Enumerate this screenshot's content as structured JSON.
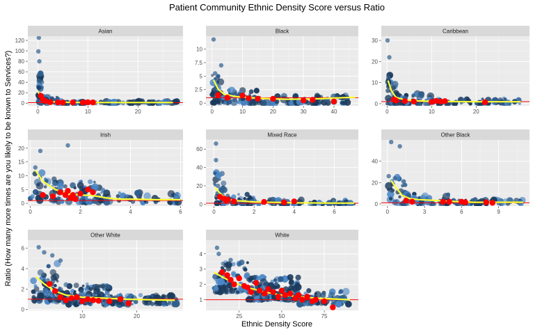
{
  "chart_data": {
    "type": "scatter",
    "title": "Patient Community Ethnic Density Score versus Ratio",
    "xlabel": "Ethnic Density Score",
    "ylabel": "Ratio (How many more times are you likely to be known to Services?)",
    "colors": {
      "points_dark": "#1b3a5c",
      "points_mid": "#2f5f8f",
      "points_light": "#4a86c5",
      "highlight_points": "#ff0000",
      "smooth_line": "#ffff33",
      "reference_line": "#ff0000"
    },
    "reference_line": {
      "y": 1
    },
    "panels": [
      {
        "name": "Asian",
        "xlim": [
          -2,
          29
        ],
        "ylim": [
          -5,
          128
        ],
        "xticks": [
          0,
          10,
          20
        ],
        "yticks": [
          0,
          20,
          40,
          60,
          80,
          100,
          120
        ],
        "smooth": [
          [
            0,
            22
          ],
          [
            0.5,
            14
          ],
          [
            1,
            8
          ],
          [
            2,
            4
          ],
          [
            3,
            2.5
          ],
          [
            5,
            1.8
          ],
          [
            8,
            1.4
          ],
          [
            12,
            1.3
          ],
          [
            18,
            1.2
          ],
          [
            27,
            1.2
          ]
        ],
        "highlight": [
          [
            0.6,
            14
          ],
          [
            1,
            7
          ],
          [
            1.5,
            4
          ],
          [
            2.5,
            2
          ],
          [
            4,
            1.5
          ],
          [
            5,
            1.2
          ],
          [
            7,
            1.5
          ],
          [
            9,
            1.2
          ],
          [
            10,
            1.8
          ],
          [
            11,
            1.5
          ]
        ],
        "bands": [
          [
            0,
            1,
            0,
            60,
            30
          ],
          [
            1,
            4,
            0,
            12,
            30
          ],
          [
            4,
            28,
            0,
            4,
            80
          ]
        ],
        "outliers": [
          [
            0.2,
            125
          ],
          [
            0.1,
            99
          ],
          [
            0.3,
            80
          ],
          [
            0.5,
            55
          ],
          [
            0.2,
            43
          ],
          [
            0.8,
            40
          ]
        ]
      },
      {
        "name": "Black",
        "xlim": [
          -2,
          48
        ],
        "ylim": [
          -0.5,
          12.4
        ],
        "xticks": [
          0,
          10,
          20,
          30,
          40
        ],
        "yticks": [
          0,
          2.5,
          5,
          7.5,
          10
        ],
        "smooth": [
          [
            0.5,
            4.3
          ],
          [
            2,
            2.6
          ],
          [
            4,
            1.6
          ],
          [
            8,
            1.2
          ],
          [
            15,
            0.9
          ],
          [
            25,
            0.7
          ],
          [
            35,
            0.8
          ],
          [
            47,
            1.1
          ]
        ],
        "highlight": [
          [
            2,
            1.5
          ],
          [
            5,
            1.0
          ],
          [
            10,
            1.4
          ],
          [
            12,
            0.9
          ],
          [
            15,
            0.8
          ],
          [
            20,
            0.8
          ],
          [
            30,
            0.5
          ],
          [
            33,
            0.6
          ],
          [
            40,
            0.3
          ]
        ],
        "bands": [
          [
            0,
            3,
            0,
            6,
            30
          ],
          [
            3,
            15,
            0,
            2.5,
            50
          ],
          [
            15,
            45,
            0,
            1.5,
            60
          ]
        ],
        "outliers": [
          [
            0.5,
            11.8
          ],
          [
            3,
            7
          ],
          [
            1,
            5.5
          ],
          [
            2,
            5.0
          ]
        ]
      },
      {
        "name": "Caribbean",
        "xlim": [
          -1.3,
          32
        ],
        "ylim": [
          -1,
          32
        ],
        "xticks": [
          0,
          10,
          20
        ],
        "yticks": [
          0,
          10,
          20,
          30
        ],
        "smooth": [
          [
            0.2,
            11
          ],
          [
            1,
            6
          ],
          [
            2,
            3
          ],
          [
            4,
            1.8
          ],
          [
            7,
            1.3
          ],
          [
            12,
            1
          ],
          [
            20,
            0.9
          ],
          [
            30,
            0.9
          ]
        ],
        "highlight": [
          [
            1.5,
            2
          ],
          [
            2,
            1.5
          ],
          [
            4,
            1.2
          ],
          [
            6,
            1
          ],
          [
            10,
            0.8
          ],
          [
            11,
            1.3
          ],
          [
            12,
            1
          ],
          [
            13,
            1.2
          ],
          [
            22,
            0.7
          ]
        ],
        "bands": [
          [
            0,
            2,
            0,
            14,
            30
          ],
          [
            2,
            10,
            0,
            5,
            50
          ],
          [
            10,
            30,
            0,
            2.5,
            60
          ]
        ],
        "outliers": [
          [
            0.1,
            30
          ],
          [
            0.5,
            22
          ],
          [
            0.3,
            12.5
          ]
        ]
      },
      {
        "name": "Irish",
        "xlim": [
          -0.1,
          6.1
        ],
        "ylim": [
          -1,
          23
        ],
        "xticks": [
          0,
          2,
          4,
          6
        ],
        "yticks": [
          0,
          5,
          10,
          15,
          20
        ],
        "smooth": [
          [
            0.2,
            12
          ],
          [
            0.5,
            8
          ],
          [
            1,
            5
          ],
          [
            1.5,
            3.5
          ],
          [
            2,
            3
          ],
          [
            2.5,
            2.8
          ],
          [
            3,
            2
          ],
          [
            3.5,
            1.5
          ],
          [
            4,
            1.5
          ],
          [
            5,
            1.3
          ],
          [
            6,
            1.3
          ]
        ],
        "highlight": [
          [
            0.5,
            3
          ],
          [
            0.9,
            2.5
          ],
          [
            1.2,
            4
          ],
          [
            1.4,
            3
          ],
          [
            1.5,
            4.5
          ],
          [
            1.6,
            2
          ],
          [
            1.7,
            3
          ],
          [
            1.8,
            1.5
          ],
          [
            2,
            3.5
          ],
          [
            2.3,
            5
          ],
          [
            2.5,
            4
          ]
        ],
        "bands": [
          [
            0,
            1,
            1,
            12,
            30
          ],
          [
            1,
            3,
            0.5,
            8,
            60
          ],
          [
            3,
            6,
            0.3,
            4,
            40
          ]
        ],
        "outliers": [
          [
            0.4,
            19
          ],
          [
            1.5,
            21
          ],
          [
            0.2,
            13
          ]
        ]
      },
      {
        "name": "Mixed Race",
        "xlim": [
          -0.4,
          7.2
        ],
        "ylim": [
          -2,
          70
        ],
        "xticks": [
          0,
          2,
          4,
          6
        ],
        "yticks": [
          0,
          20,
          40,
          60
        ],
        "smooth": [
          [
            0.05,
            18
          ],
          [
            0.3,
            12
          ],
          [
            0.6,
            6
          ],
          [
            1,
            4
          ],
          [
            2,
            2.5
          ],
          [
            3,
            2
          ],
          [
            4,
            1.5
          ],
          [
            6,
            1.2
          ],
          [
            7,
            1.2
          ]
        ],
        "highlight": [
          [
            0.3,
            8
          ],
          [
            0.5,
            6
          ],
          [
            0.6,
            4
          ],
          [
            0.7,
            5
          ],
          [
            1,
            3
          ],
          [
            2.5,
            2.5
          ],
          [
            3.5,
            2
          ],
          [
            4,
            3
          ]
        ],
        "bands": [
          [
            0,
            0.6,
            0,
            35,
            30
          ],
          [
            0.6,
            2,
            0,
            12,
            40
          ],
          [
            2,
            7,
            0,
            5,
            60
          ]
        ],
        "outliers": [
          [
            0.1,
            66
          ],
          [
            0.1,
            48
          ],
          [
            0.2,
            20
          ]
        ]
      },
      {
        "name": "Other Black",
        "xlim": [
          -0.5,
          11.5
        ],
        "ylim": [
          -2,
          60
        ],
        "xticks": [
          0,
          3,
          6,
          9
        ],
        "yticks": [
          0,
          20,
          40
        ],
        "smooth": [
          [
            0.3,
            22
          ],
          [
            0.7,
            15
          ],
          [
            1.2,
            8
          ],
          [
            1.8,
            5
          ],
          [
            2.5,
            4
          ],
          [
            3.5,
            3.5
          ],
          [
            5,
            2.5
          ],
          [
            7,
            1.5
          ],
          [
            9,
            1.5
          ],
          [
            11,
            1.5
          ]
        ],
        "highlight": [
          [
            1.5,
            3
          ],
          [
            2,
            2
          ],
          [
            4.5,
            2
          ],
          [
            5,
            2
          ],
          [
            6,
            2
          ],
          [
            6.3,
            1.5
          ],
          [
            8,
            1.5
          ],
          [
            8.5,
            1
          ]
        ],
        "bands": [
          [
            0,
            1.5,
            0,
            25,
            30
          ],
          [
            1.5,
            5,
            0,
            10,
            50
          ],
          [
            5,
            11,
            0,
            4,
            60
          ]
        ],
        "outliers": [
          [
            0.3,
            58
          ],
          [
            1,
            54
          ],
          [
            0.1,
            26
          ],
          [
            0.6,
            24
          ]
        ]
      },
      {
        "name": "Other White",
        "xlim": [
          0,
          28.5
        ],
        "ylim": [
          -0.1,
          6.8
        ],
        "xticks": [
          10,
          20
        ],
        "yticks": [
          0,
          2,
          4,
          6
        ],
        "smooth": [
          [
            1.5,
            3.2
          ],
          [
            3,
            2.5
          ],
          [
            5,
            1.8
          ],
          [
            7,
            1.4
          ],
          [
            10,
            1.2
          ],
          [
            14,
            1.1
          ],
          [
            18,
            1
          ],
          [
            22,
            0.95
          ],
          [
            27,
            0.9
          ]
        ],
        "highlight": [
          [
            4,
            2.5
          ],
          [
            5,
            1.8
          ],
          [
            6,
            1.2
          ],
          [
            7,
            0.9
          ],
          [
            8,
            1.1
          ],
          [
            9,
            1.2
          ],
          [
            10,
            0.8
          ],
          [
            11,
            1.0
          ],
          [
            12,
            0.9
          ],
          [
            13,
            0.85
          ],
          [
            15,
            0.8
          ],
          [
            17,
            1
          ],
          [
            18.5,
            0.6
          ]
        ],
        "bands": [
          [
            1,
            6,
            0.8,
            4.5,
            60
          ],
          [
            6,
            15,
            0.5,
            2.5,
            120
          ],
          [
            15,
            28,
            0.5,
            1.5,
            80
          ]
        ],
        "outliers": [
          [
            2,
            6.1
          ],
          [
            3,
            5.6
          ],
          [
            4.5,
            5.3
          ],
          [
            6,
            4.8
          ]
        ]
      },
      {
        "name": "White",
        "xlim": [
          5.5,
          95
        ],
        "ylim": [
          0.3,
          4.9
        ],
        "xticks": [
          25,
          50,
          75
        ],
        "yticks": [
          1,
          2,
          3,
          4
        ],
        "smooth": [
          [
            10,
            2.8
          ],
          [
            15,
            2.5
          ],
          [
            20,
            2.2
          ],
          [
            30,
            1.8
          ],
          [
            40,
            1.5
          ],
          [
            50,
            1.3
          ],
          [
            60,
            1.2
          ],
          [
            70,
            1.1
          ],
          [
            80,
            1.05
          ],
          [
            90,
            1.0
          ]
        ],
        "highlight": [
          [
            15,
            2.8
          ],
          [
            18,
            2.6
          ],
          [
            20,
            2.3
          ],
          [
            22,
            2.0
          ],
          [
            25,
            2.4
          ],
          [
            28,
            1.9
          ],
          [
            30,
            1.8
          ],
          [
            32,
            1.5
          ],
          [
            35,
            2.1
          ],
          [
            37,
            1.6
          ],
          [
            40,
            1.4
          ],
          [
            42,
            1.7
          ],
          [
            45,
            1.5
          ],
          [
            48,
            1.2
          ],
          [
            50,
            1.6
          ],
          [
            52,
            1.3
          ],
          [
            55,
            1.4
          ],
          [
            58,
            1.1
          ],
          [
            60,
            1.3
          ],
          [
            62,
            1.0
          ],
          [
            65,
            1.2
          ],
          [
            68,
            0.9
          ],
          [
            70,
            1.0
          ],
          [
            75,
            0.9
          ],
          [
            80,
            0.5
          ]
        ],
        "bands": [
          [
            10,
            30,
            1.5,
            3.5,
            80
          ],
          [
            30,
            60,
            1.0,
            2.5,
            150
          ],
          [
            60,
            90,
            0.7,
            1.6,
            80
          ]
        ],
        "outliers": [
          [
            12,
            4.4
          ],
          [
            13,
            4.0
          ],
          [
            20,
            3.6
          ],
          [
            25,
            3.3
          ]
        ]
      }
    ]
  }
}
